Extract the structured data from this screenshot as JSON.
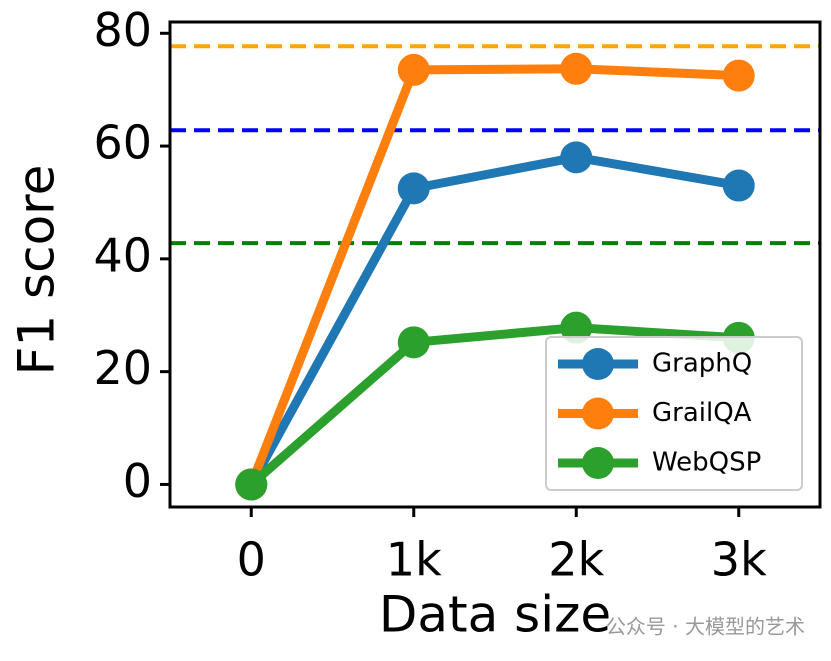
{
  "chart_data": {
    "type": "line",
    "x_label": "Data size",
    "y_label": "F1 score",
    "x": [
      0,
      1000,
      2000,
      3000
    ],
    "xlim": [
      -500,
      3500
    ],
    "xticks": [
      {
        "value": 0,
        "label": "0"
      },
      {
        "value": 1000,
        "label": "1k"
      },
      {
        "value": 2000,
        "label": "2k"
      },
      {
        "value": 3000,
        "label": "3k"
      }
    ],
    "ylim": [
      -4,
      82
    ],
    "yticks": [
      0,
      20,
      40,
      60,
      80
    ],
    "series": [
      {
        "name": "GraphQ",
        "color": "#1f77b4",
        "values": [
          0,
          52.5,
          58,
          53
        ]
      },
      {
        "name": "GrailQA",
        "color": "#ff7f0e",
        "values": [
          0,
          73.5,
          73.7,
          72.5
        ]
      },
      {
        "name": "WebQSP",
        "color": "#2ca02c",
        "values": [
          0,
          25.2,
          27.8,
          26
        ]
      }
    ],
    "reference_lines": [
      {
        "value": 77.7,
        "color": "#ffa500"
      },
      {
        "value": 62.8,
        "color": "#0000ff"
      },
      {
        "value": 42.8,
        "color": "#008000"
      }
    ],
    "legend": "lower right",
    "watermark": "公众号 · 大模型的艺术"
  }
}
